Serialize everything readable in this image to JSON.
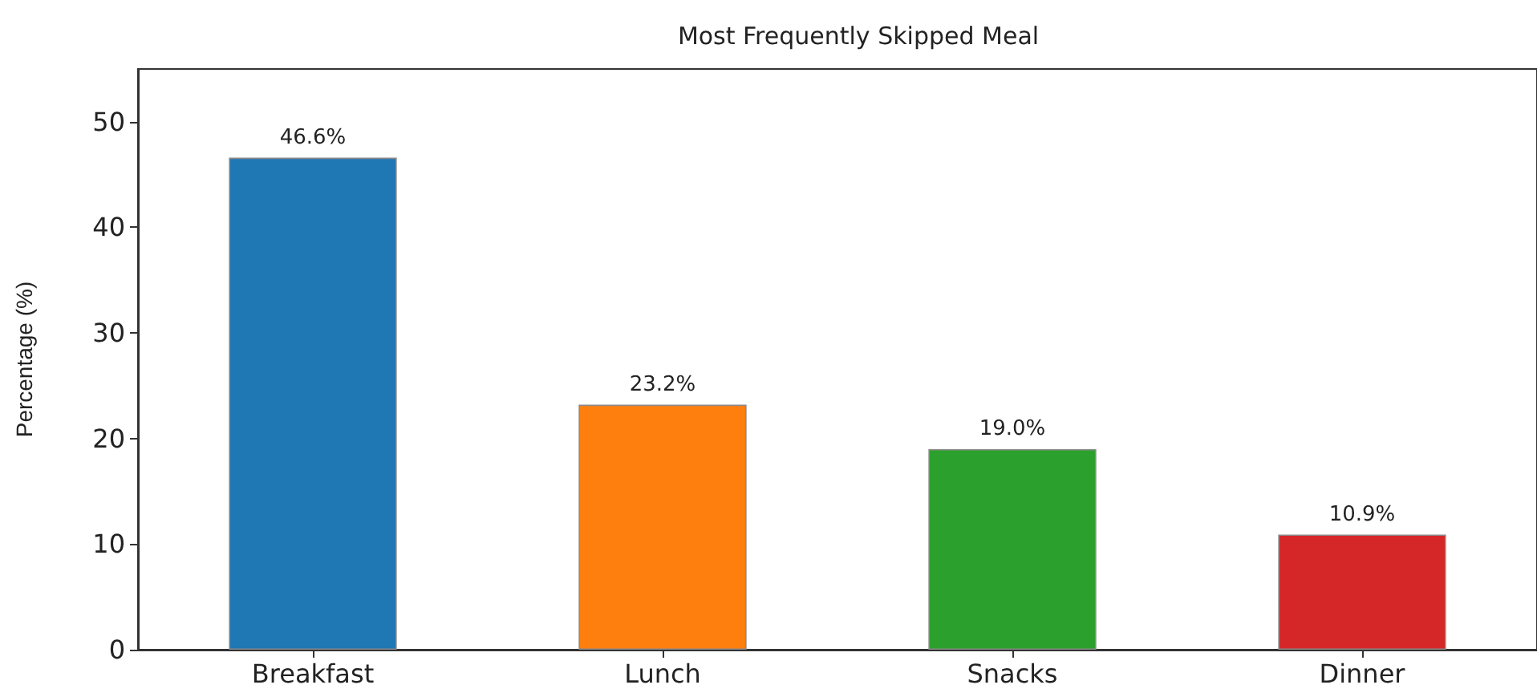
{
  "chart_data": {
    "type": "bar",
    "title": "Most Frequently Skipped Meal",
    "ylabel": "Percentage (%)",
    "categories": [
      "Breakfast",
      "Lunch",
      "Snacks",
      "Dinner"
    ],
    "values": [
      46.6,
      23.2,
      19.0,
      10.9
    ],
    "colors": [
      "#1f77b4",
      "#ff7f0e",
      "#2ca02c",
      "#d62728"
    ],
    "value_labels": [
      "46.6%",
      "23.2%",
      "19.0%",
      "10.9%"
    ],
    "ylim": [
      0,
      55
    ],
    "yticks": [
      0,
      10,
      20,
      30,
      40,
      50
    ],
    "grid": false
  }
}
